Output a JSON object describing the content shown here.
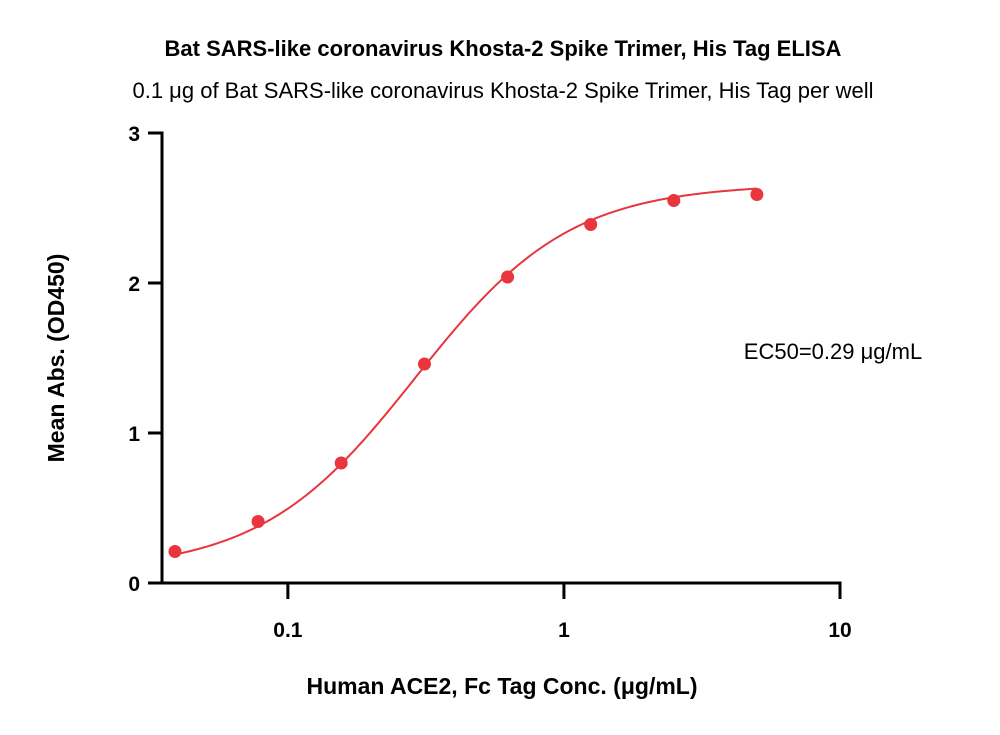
{
  "chart_data": {
    "type": "scatter",
    "title": "Bat SARS-like coronavirus Khosta-2 Spike Trimer, His Tag ELISA",
    "subtitle": "0.1 μg of Bat SARS-like coronavirus Khosta-2 Spike Trimer, His Tag per well",
    "xlabel": "Human ACE2, Fc Tag Conc. (μg/mL)",
    "ylabel": "Mean Abs. (OD450)",
    "xscale": "log",
    "xlim": [
      0.035,
      10
    ],
    "ylim": [
      0,
      3
    ],
    "xticks": [
      0.1,
      1,
      10
    ],
    "xtick_labels": [
      "0.1",
      "1",
      "10"
    ],
    "yticks": [
      0,
      1,
      2,
      3
    ],
    "ytick_labels": [
      "0",
      "1",
      "2",
      "3"
    ],
    "grid": false,
    "series": [
      {
        "color": "#e8353e",
        "x": [
          0.039,
          0.078,
          0.156,
          0.3125,
          0.625,
          1.25,
          2.5,
          5
        ],
        "y": [
          0.21,
          0.41,
          0.8,
          1.46,
          2.04,
          2.39,
          2.55,
          2.59
        ],
        "fit": "4PL",
        "fit_params": {
          "bottom": 0.08,
          "top": 2.66,
          "ec50": 0.29,
          "hill": 1.55
        }
      }
    ],
    "annotations": [
      {
        "text": "EC50=0.29 μg/mL"
      }
    ]
  }
}
